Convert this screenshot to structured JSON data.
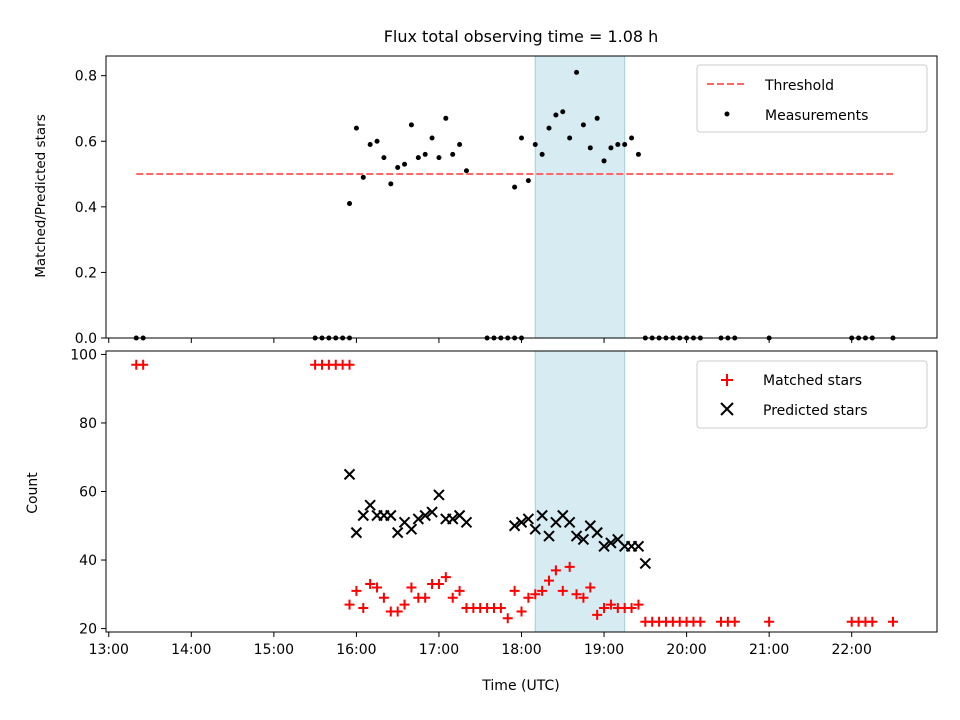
{
  "chart_data": [
    {
      "type": "scatter",
      "title": "Flux total observing time = 1.08 h",
      "xlabel": "",
      "ylabel": "Matched/Predicted stars",
      "xlim": [
        "12:58",
        "23:02"
      ],
      "ylim": [
        0,
        0.86
      ],
      "yticks": [
        0.0,
        0.2,
        0.4,
        0.6,
        0.8
      ],
      "yticklabels": [
        "0.0",
        "0.2",
        "0.4",
        "0.6",
        "0.8"
      ],
      "highlight_span": {
        "x0": "18:10",
        "x1": "19:15",
        "color": "#add8e6"
      },
      "legend": {
        "placement": "top-right",
        "entries": [
          "Threshold",
          "Measurements"
        ]
      },
      "series": [
        {
          "name": "Threshold",
          "kind": "dashed-line",
          "color": "#ff6666",
          "x": [
            "13:20",
            "22:30"
          ],
          "y": [
            0.5,
            0.5
          ]
        },
        {
          "name": "Measurements",
          "kind": "points",
          "color": "#000000",
          "x": [
            "13:20",
            "13:25",
            "15:30",
            "15:35",
            "15:40",
            "15:45",
            "15:50",
            "15:55",
            "15:55",
            "16:00",
            "16:05",
            "16:10",
            "16:15",
            "16:20",
            "16:25",
            "16:30",
            "16:35",
            "16:40",
            "16:45",
            "16:50",
            "16:55",
            "17:00",
            "17:05",
            "17:10",
            "17:15",
            "17:20",
            "17:35",
            "17:40",
            "17:45",
            "17:50",
            "17:55",
            "18:00",
            "17:55",
            "18:00",
            "18:05",
            "18:10",
            "18:15",
            "18:20",
            "18:25",
            "18:30",
            "18:35",
            "18:40",
            "18:45",
            "18:50",
            "18:55",
            "19:00",
            "19:05",
            "19:10",
            "19:15",
            "19:20",
            "19:25",
            "19:30",
            "19:35",
            "19:40",
            "19:45",
            "19:50",
            "19:55",
            "20:00",
            "20:05",
            "20:10",
            "20:25",
            "20:30",
            "20:35",
            "21:00",
            "22:00",
            "22:05",
            "22:10",
            "22:15",
            "22:30"
          ],
          "y": [
            0,
            0,
            0,
            0,
            0,
            0,
            0,
            0,
            0.41,
            0.64,
            0.49,
            0.59,
            0.6,
            0.55,
            0.47,
            0.52,
            0.53,
            0.65,
            0.55,
            0.56,
            0.61,
            0.55,
            0.67,
            0.56,
            0.59,
            0.51,
            0,
            0,
            0,
            0,
            0,
            0,
            0.46,
            0.61,
            0.48,
            0.59,
            0.56,
            0.64,
            0.68,
            0.69,
            0.61,
            0.81,
            0.65,
            0.58,
            0.67,
            0.54,
            0.58,
            0.59,
            0.59,
            0.61,
            0.56,
            0,
            0,
            0,
            0,
            0,
            0,
            0,
            0,
            0,
            0,
            0,
            0,
            0,
            0,
            0,
            0,
            0,
            0
          ]
        }
      ]
    },
    {
      "type": "scatter",
      "title": "",
      "xlabel": "Time (UTC)",
      "ylabel": "Count",
      "xlim": [
        "12:58",
        "23:02"
      ],
      "ylim": [
        19,
        101
      ],
      "yticks": [
        20,
        40,
        60,
        80,
        100
      ],
      "xticklabels": [
        "13:00",
        "14:00",
        "15:00",
        "16:00",
        "17:00",
        "18:00",
        "19:00",
        "20:00",
        "21:00",
        "22:00"
      ],
      "highlight_span": {
        "x0": "18:10",
        "x1": "19:15",
        "color": "#add8e6"
      },
      "legend": {
        "placement": "top-right",
        "entries": [
          "Matched stars",
          "Predicted stars"
        ]
      },
      "series": [
        {
          "name": "Matched stars",
          "marker": "+",
          "color": "#ff0000",
          "x": [
            "13:20",
            "13:25",
            "15:30",
            "15:35",
            "15:40",
            "15:45",
            "15:50",
            "15:55",
            "15:55",
            "16:00",
            "16:05",
            "16:10",
            "16:15",
            "16:20",
            "16:25",
            "16:30",
            "16:35",
            "16:40",
            "16:45",
            "16:50",
            "16:55",
            "17:00",
            "17:05",
            "17:10",
            "17:15",
            "17:20",
            "17:25",
            "17:30",
            "17:35",
            "17:40",
            "17:45",
            "17:50",
            "17:55",
            "18:00",
            "18:05",
            "18:10",
            "18:15",
            "18:20",
            "18:25",
            "18:30",
            "18:35",
            "18:40",
            "18:45",
            "18:50",
            "18:55",
            "19:00",
            "19:05",
            "19:10",
            "19:15",
            "19:20",
            "19:25",
            "19:30",
            "19:35",
            "19:40",
            "19:45",
            "19:50",
            "19:55",
            "20:00",
            "20:05",
            "20:10",
            "20:25",
            "20:30",
            "20:35",
            "21:00",
            "22:00",
            "22:05",
            "22:10",
            "22:15",
            "22:30"
          ],
          "y": [
            97,
            97,
            97,
            97,
            97,
            97,
            97,
            97,
            27,
            31,
            26,
            33,
            32,
            29,
            25,
            25,
            27,
            32,
            29,
            29,
            33,
            33,
            35,
            29,
            31,
            26,
            26,
            26,
            26,
            26,
            26,
            23,
            31,
            25,
            29,
            30,
            31,
            34,
            37,
            31,
            38,
            30,
            29,
            32,
            24,
            26,
            27,
            26,
            26,
            26,
            27,
            22,
            22,
            22,
            22,
            22,
            22,
            22,
            22,
            22,
            22,
            22,
            22,
            22,
            22,
            22,
            22,
            22,
            22
          ]
        },
        {
          "name": "Predicted stars",
          "marker": "x",
          "color": "#000000",
          "x": [
            "15:55",
            "16:00",
            "16:05",
            "16:10",
            "16:15",
            "16:20",
            "16:25",
            "16:30",
            "16:35",
            "16:40",
            "16:45",
            "16:50",
            "16:55",
            "17:00",
            "17:05",
            "17:10",
            "17:15",
            "17:20",
            "17:55",
            "18:00",
            "18:05",
            "18:10",
            "18:15",
            "18:20",
            "18:25",
            "18:30",
            "18:35",
            "18:40",
            "18:45",
            "18:50",
            "18:55",
            "19:00",
            "19:05",
            "19:10",
            "19:15",
            "19:20",
            "19:25",
            "19:30"
          ],
          "y": [
            65,
            48,
            53,
            56,
            53,
            53,
            53,
            48,
            51,
            49,
            52,
            53,
            54,
            59,
            52,
            52,
            53,
            51,
            50,
            51,
            52,
            49,
            53,
            47,
            51,
            53,
            51,
            47,
            46,
            50,
            48,
            44,
            45,
            46,
            44,
            44,
            44,
            39
          ]
        }
      ]
    }
  ]
}
